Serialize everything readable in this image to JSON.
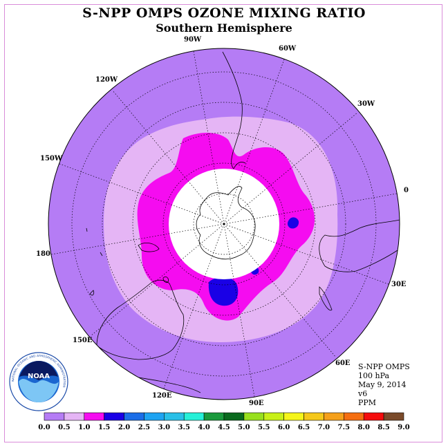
{
  "header": {
    "title": "S-NPP OMPS OZONE MIXING RATIO",
    "subtitle": "Southern Hemisphere"
  },
  "map": {
    "projection": "polar-stereographic-south",
    "longitude_labels": [
      "90W",
      "60W",
      "30W",
      "0",
      "30E",
      "60E",
      "90E",
      "120E",
      "150E",
      "180",
      "150W",
      "120W"
    ],
    "contour_levels_ppm": [
      {
        "range": "0.5-1.0",
        "region": "outer ring"
      },
      {
        "range": "1.0-1.5",
        "region": "inner ring"
      },
      {
        "range": "1.5-2.0",
        "region": "small cells"
      }
    ]
  },
  "info": {
    "instrument": "S-NPP OMPS",
    "level": "100 hPa",
    "date": "May 9, 2014",
    "version": "v6",
    "units": "PPM"
  },
  "logo": {
    "text": "NOAA",
    "ring_text": "NATIONAL OCEANIC AND ATMOSPHERIC ADMINISTRATION"
  },
  "colorbar": {
    "labels": [
      "0.0",
      "0.5",
      "1.0",
      "1.5",
      "2.0",
      "2.5",
      "3.0",
      "3.5",
      "4.0",
      "4.5",
      "5.0",
      "5.5",
      "6.0",
      "6.5",
      "7.0",
      "7.5",
      "8.0",
      "8.5",
      "9.0"
    ],
    "colors": [
      "#b57cf5",
      "#e5b5f5",
      "#f50cf0",
      "#1a00e6",
      "#1b6ee8",
      "#1ea4f2",
      "#29c0e8",
      "#26f0d8",
      "#1a9a3c",
      "#0a6a1e",
      "#98e01e",
      "#c8f018",
      "#f5f51a",
      "#f5c81a",
      "#f5a01a",
      "#f56e10",
      "#f50c0c",
      "#7a4a2a"
    ]
  }
}
